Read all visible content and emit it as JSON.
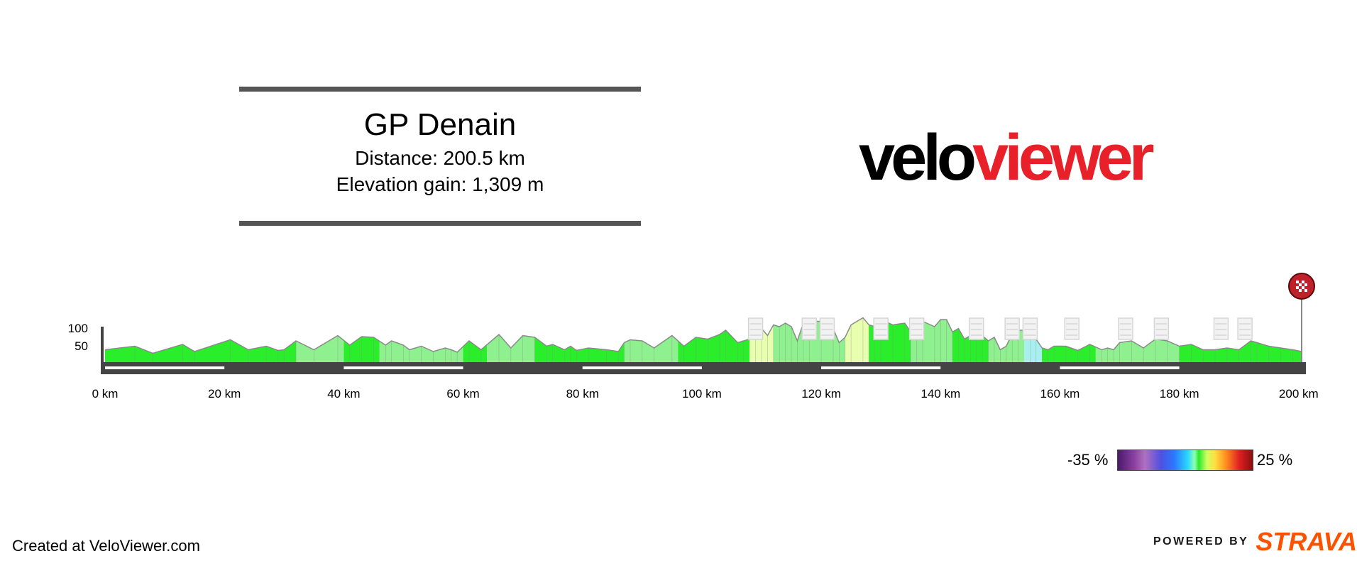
{
  "header": {
    "title": "GP Denain",
    "distance": "Distance: 200.5 km",
    "elevation_gain": "Elevation gain: 1,309 m"
  },
  "logo": {
    "velo": "velo",
    "viewer": "viewer",
    "velo_color": "#000000",
    "viewer_color": "#e8202a"
  },
  "legend": {
    "min": "-35 %",
    "max": "25 %"
  },
  "footer": {
    "credit": "Created at VeloViewer.com",
    "powered_by": "POWERED BY",
    "strava": "STRAVA",
    "strava_color": "#fc5200"
  },
  "colors": {
    "gradient_bright": "#2aee2a",
    "gradient_light": "#8ef08e",
    "gradient_pale_yellow": "#e8ffb0",
    "gradient_cyan": "#a8f0f0",
    "road": "#444444",
    "finish_flag": "#c0202a",
    "cobble_marker": "#d6d6d6"
  },
  "chart_data": {
    "type": "area",
    "title": "GP Denain",
    "xlabel": "",
    "ylabel": "",
    "x_unit": "km",
    "y_unit": "m",
    "xlim": [
      0,
      200.5
    ],
    "ylim": [
      0,
      120
    ],
    "x_ticks": [
      0,
      20,
      40,
      60,
      80,
      100,
      120,
      140,
      160,
      180,
      200
    ],
    "x_tick_labels": [
      "0 km",
      "20 km",
      "40 km",
      "60 km",
      "80 km",
      "100 km",
      "120 km",
      "140 km",
      "160 km",
      "180 km",
      "200 km"
    ],
    "y_ticks": [
      50,
      100
    ],
    "y_tick_labels": [
      "50",
      "100"
    ],
    "color_scale": {
      "min_percent": -35,
      "max_percent": 25
    },
    "profile": [
      [
        0,
        35
      ],
      [
        5,
        45
      ],
      [
        8,
        25
      ],
      [
        13,
        50
      ],
      [
        15,
        30
      ],
      [
        21,
        63
      ],
      [
        24,
        35
      ],
      [
        27,
        45
      ],
      [
        29,
        33
      ],
      [
        30,
        35
      ],
      [
        32,
        60
      ],
      [
        35,
        35
      ],
      [
        39,
        75
      ],
      [
        41,
        48
      ],
      [
        43,
        72
      ],
      [
        45,
        70
      ],
      [
        47,
        48
      ],
      [
        48,
        60
      ],
      [
        50,
        48
      ],
      [
        51,
        35
      ],
      [
        53,
        45
      ],
      [
        55,
        30
      ],
      [
        57,
        40
      ],
      [
        58,
        35
      ],
      [
        59,
        28
      ],
      [
        61,
        60
      ],
      [
        63,
        35
      ],
      [
        66,
        78
      ],
      [
        68,
        40
      ],
      [
        70,
        75
      ],
      [
        72,
        70
      ],
      [
        74,
        45
      ],
      [
        75,
        50
      ],
      [
        77,
        35
      ],
      [
        78,
        45
      ],
      [
        79,
        33
      ],
      [
        81,
        40
      ],
      [
        84,
        35
      ],
      [
        86,
        30
      ],
      [
        87,
        55
      ],
      [
        88,
        63
      ],
      [
        90,
        60
      ],
      [
        92,
        40
      ],
      [
        95,
        75
      ],
      [
        97,
        45
      ],
      [
        99,
        70
      ],
      [
        101,
        65
      ],
      [
        103,
        78
      ],
      [
        104,
        90
      ],
      [
        106,
        55
      ],
      [
        107,
        60
      ],
      [
        109,
        70
      ],
      [
        110,
        95
      ],
      [
        111,
        75
      ],
      [
        112,
        105
      ],
      [
        113,
        100
      ],
      [
        114,
        110
      ],
      [
        115,
        100
      ],
      [
        116,
        60
      ],
      [
        117,
        110
      ],
      [
        118,
        115
      ],
      [
        120,
        115
      ],
      [
        122,
        95
      ],
      [
        123,
        55
      ],
      [
        124,
        70
      ],
      [
        125,
        105
      ],
      [
        127,
        125
      ],
      [
        128,
        105
      ],
      [
        129,
        100
      ],
      [
        130,
        120
      ],
      [
        132,
        105
      ],
      [
        134,
        110
      ],
      [
        135,
        85
      ],
      [
        136,
        110
      ],
      [
        137,
        115
      ],
      [
        139,
        100
      ],
      [
        140,
        120
      ],
      [
        141,
        120
      ],
      [
        142,
        85
      ],
      [
        143,
        95
      ],
      [
        144,
        65
      ],
      [
        145,
        75
      ],
      [
        146,
        90
      ],
      [
        147,
        75
      ],
      [
        148,
        60
      ],
      [
        149,
        70
      ],
      [
        150,
        35
      ],
      [
        151,
        45
      ],
      [
        152,
        80
      ],
      [
        153,
        90
      ],
      [
        155,
        90
      ],
      [
        156,
        65
      ],
      [
        157,
        40
      ],
      [
        158,
        35
      ],
      [
        159,
        45
      ],
      [
        161,
        45
      ],
      [
        163,
        33
      ],
      [
        165,
        50
      ],
      [
        167,
        35
      ],
      [
        168,
        40
      ],
      [
        169,
        35
      ],
      [
        170,
        55
      ],
      [
        172,
        60
      ],
      [
        174,
        40
      ],
      [
        176,
        65
      ],
      [
        178,
        60
      ],
      [
        180,
        45
      ],
      [
        182,
        50
      ],
      [
        184,
        35
      ],
      [
        186,
        35
      ],
      [
        188,
        40
      ],
      [
        190,
        35
      ],
      [
        192,
        60
      ],
      [
        193,
        55
      ],
      [
        195,
        45
      ],
      [
        197,
        40
      ],
      [
        199,
        35
      ],
      [
        200.5,
        30
      ]
    ],
    "sectors": [
      {
        "from_km": 0,
        "to_km": 32,
        "color": "#2aee2a"
      },
      {
        "from_km": 32,
        "to_km": 40,
        "color": "#8ef08e"
      },
      {
        "from_km": 40,
        "to_km": 46,
        "color": "#2aee2a"
      },
      {
        "from_km": 46,
        "to_km": 60,
        "color": "#8ef08e"
      },
      {
        "from_km": 60,
        "to_km": 64,
        "color": "#2aee2a"
      },
      {
        "from_km": 64,
        "to_km": 72,
        "color": "#8ef08e"
      },
      {
        "from_km": 72,
        "to_km": 87,
        "color": "#2aee2a"
      },
      {
        "from_km": 87,
        "to_km": 96,
        "color": "#8ef08e"
      },
      {
        "from_km": 96,
        "to_km": 108,
        "color": "#2aee2a"
      },
      {
        "from_km": 108,
        "to_km": 112,
        "color": "#e8ffb0"
      },
      {
        "from_km": 112,
        "to_km": 124,
        "color": "#8ef08e"
      },
      {
        "from_km": 124,
        "to_km": 128,
        "color": "#e8ffb0"
      },
      {
        "from_km": 128,
        "to_km": 135,
        "color": "#2aee2a"
      },
      {
        "from_km": 135,
        "to_km": 142,
        "color": "#8ef08e"
      },
      {
        "from_km": 142,
        "to_km": 148,
        "color": "#2aee2a"
      },
      {
        "from_km": 148,
        "to_km": 154,
        "color": "#8ef08e"
      },
      {
        "from_km": 154,
        "to_km": 157,
        "color": "#a8f0f0"
      },
      {
        "from_km": 157,
        "to_km": 166,
        "color": "#2aee2a"
      },
      {
        "from_km": 166,
        "to_km": 180,
        "color": "#8ef08e"
      },
      {
        "from_km": 180,
        "to_km": 200.5,
        "color": "#2aee2a"
      }
    ],
    "cobbled_sectors_km": [
      109,
      118,
      121,
      130,
      136,
      146,
      152,
      155,
      162,
      171,
      177,
      187,
      191
    ]
  }
}
